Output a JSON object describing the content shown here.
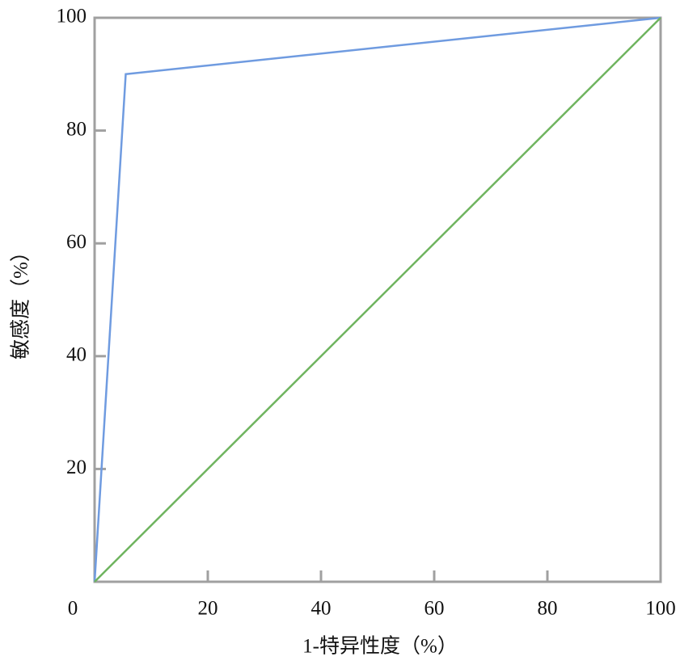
{
  "chart_data": {
    "type": "line",
    "xlabel": "1-特异性度（%）",
    "ylabel": "敏感度（%）",
    "series": [
      {
        "color": "#6f9be0",
        "x": [
          0,
          5.5,
          100
        ],
        "values": [
          0,
          90,
          100
        ]
      },
      {
        "color": "#6fb45f",
        "x": [
          0,
          100
        ],
        "values": [
          0,
          100
        ]
      }
    ],
    "xlim": [
      0,
      100
    ],
    "ylim": [
      0,
      100
    ],
    "xticks": [
      0,
      20,
      40,
      60,
      80,
      100
    ],
    "yticks": [
      20,
      40,
      60,
      80,
      100
    ],
    "grid": false
  }
}
